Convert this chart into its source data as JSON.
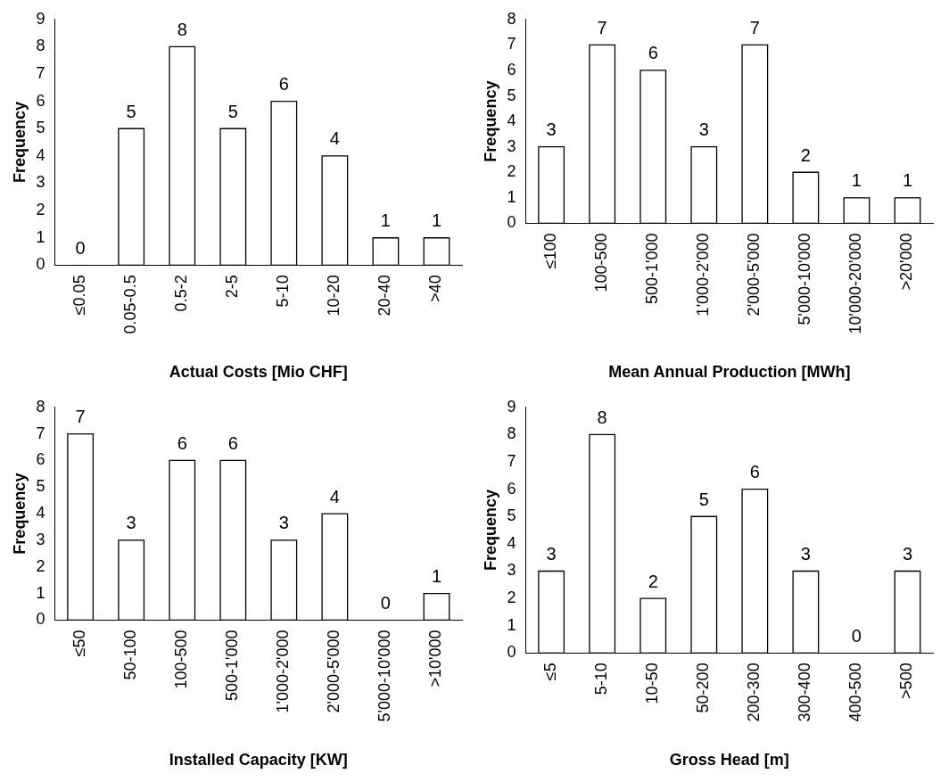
{
  "chart_data": [
    {
      "type": "bar",
      "xlabel": "Actual Costs [Mio CHF]",
      "ylabel": "Frequency",
      "categories": [
        "≤0.05",
        "0.05-0.5",
        "0.5-2",
        "2-5",
        "5-10",
        "10-20",
        "20-40",
        ">40"
      ],
      "values": [
        0,
        5,
        8,
        5,
        6,
        4,
        1,
        1
      ],
      "color": "#ffffff",
      "ylim": [
        0,
        9
      ],
      "yticks": [
        0,
        1,
        2,
        3,
        4,
        5,
        6,
        7,
        8,
        9
      ],
      "grid": false,
      "legend": false,
      "data_labels": true
    },
    {
      "type": "bar",
      "xlabel": "Mean Annual Production [MWh]",
      "ylabel": "Frequency",
      "categories": [
        "≤100",
        "100-500",
        "500-1'000",
        "1'000-2'000",
        "2'000-5'000",
        "5'000-10'000",
        "10'000-20'000",
        ">20'000"
      ],
      "values": [
        3,
        7,
        6,
        3,
        7,
        2,
        1,
        1
      ],
      "color": "#ffffff",
      "ylim": [
        0,
        8
      ],
      "yticks": [
        0,
        1,
        2,
        3,
        4,
        5,
        6,
        7,
        8
      ],
      "grid": false,
      "legend": false,
      "data_labels": true
    },
    {
      "type": "bar",
      "xlabel": "Installed Capacity [KW]",
      "ylabel": "Frequency",
      "categories": [
        "≤50",
        "50-100",
        "100-500",
        "500-1'000",
        "1'000-2'000",
        "2'000-5'000",
        "5'000-10'000",
        ">10'000"
      ],
      "values": [
        7,
        3,
        6,
        6,
        3,
        4,
        0,
        1
      ],
      "color": "#ffffff",
      "ylim": [
        0,
        8
      ],
      "yticks": [
        0,
        1,
        2,
        3,
        4,
        5,
        6,
        7,
        8
      ],
      "grid": false,
      "legend": false,
      "data_labels": true
    },
    {
      "type": "bar",
      "xlabel": "Gross Head [m]",
      "ylabel": "Frequency",
      "categories": [
        "≤5",
        "5-10",
        "10-50",
        "50-200",
        "200-300",
        "300-400",
        "400-500",
        ">500"
      ],
      "values": [
        3,
        8,
        2,
        5,
        6,
        3,
        0,
        3
      ],
      "color": "#ffffff",
      "ylim": [
        0,
        9
      ],
      "yticks": [
        0,
        1,
        2,
        3,
        4,
        5,
        6,
        7,
        8,
        9
      ],
      "grid": false,
      "legend": false,
      "data_labels": true
    }
  ]
}
